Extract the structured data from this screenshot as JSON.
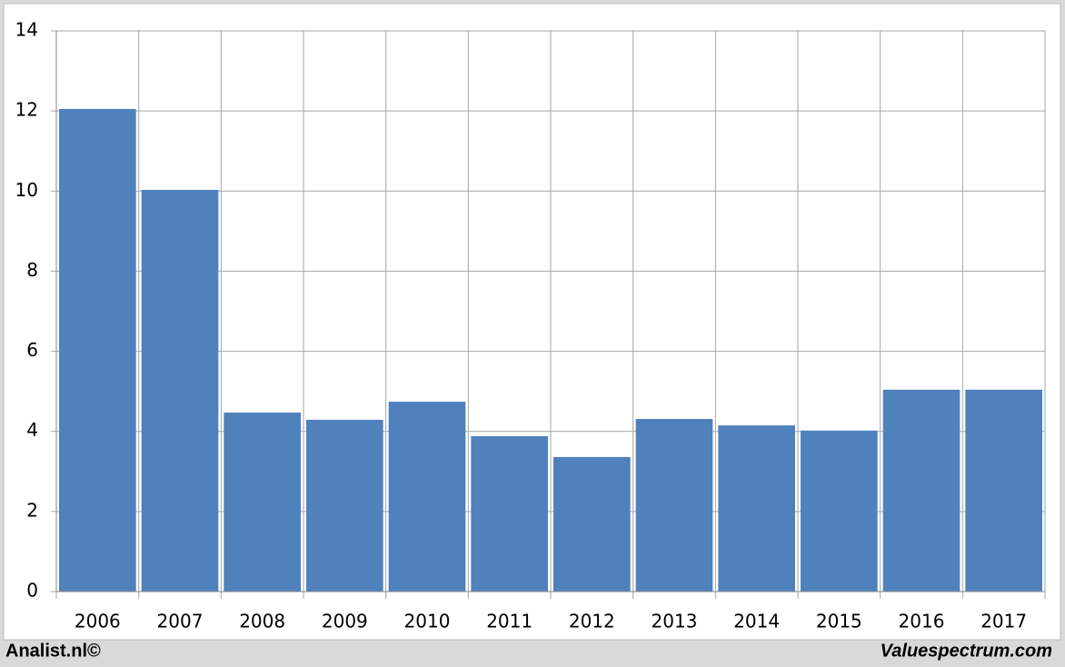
{
  "chart_data": {
    "type": "bar",
    "categories": [
      "2006",
      "2007",
      "2008",
      "2009",
      "2010",
      "2011",
      "2012",
      "2013",
      "2014",
      "2015",
      "2016",
      "2017"
    ],
    "values": [
      12.05,
      10.03,
      4.47,
      4.29,
      4.74,
      3.88,
      3.36,
      4.31,
      4.15,
      4.02,
      5.04,
      5.04
    ],
    "color": "#4f81bd",
    "ylim": [
      0,
      14
    ],
    "yticks": [
      0,
      2,
      4,
      6,
      8,
      10,
      12,
      14
    ],
    "grid": true
  },
  "footer": {
    "left": "Analist.nl©",
    "right": "Valuespectrum.com"
  }
}
